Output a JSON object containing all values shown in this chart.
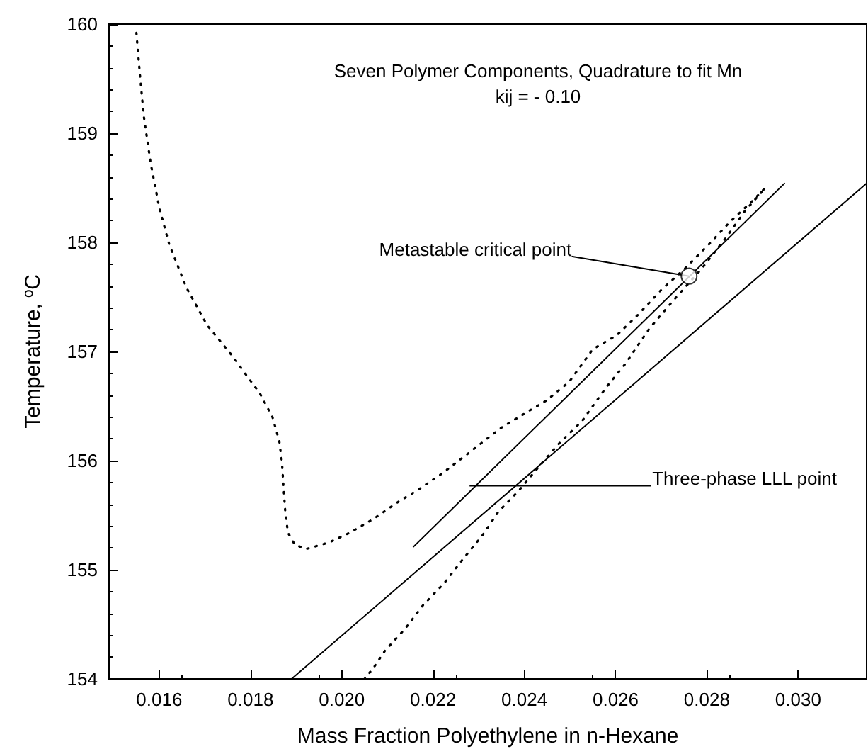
{
  "chart_data": {
    "type": "line",
    "xlabel": "Mass Fraction Polyethylene in n-Hexane",
    "ylabel": "Temperature, ºC",
    "annotations": [
      "Seven Polymer Components, Quadrature to fit Mn",
      "kij = - 0.10",
      {
        "text": "Metastable critical point",
        "x": 0.02761,
        "y": 157.69
      },
      {
        "text": "Three-phase LLL point",
        "x": 0.0228,
        "y": 155.77
      }
    ],
    "xlim": [
      0.0149,
      0.0315
    ],
    "ylim": [
      154,
      160
    ],
    "xticks": [
      0.016,
      0.018,
      {
        "value": 0.02,
        "label": "0.020"
      },
      0.022,
      0.024,
      0.026,
      0.028,
      {
        "value": 0.03,
        "label": "0.030"
      }
    ],
    "yticks": [
      154,
      155,
      156,
      157,
      158,
      159,
      160
    ],
    "grid": false,
    "series": [
      {
        "color": "#000000",
        "line_style": "dotted",
        "x": [
          0.0155,
          0.01557,
          0.01566,
          0.01581,
          0.016,
          0.01622,
          0.01659,
          0.01705,
          0.01764,
          0.01786,
          0.0182,
          0.01848,
          0.01863,
          0.01869,
          0.01872,
          0.01876,
          0.01882,
          0.01897,
          0.01922,
          0.01972,
          0.02018,
          0.02071,
          0.02123,
          0.0217,
          0.02219,
          0.02272,
          0.02349,
          0.02396,
          0.02448,
          0.02498,
          0.0255,
          0.02603,
          0.0265,
          0.02699,
          0.02752,
          0.02804,
          0.02851,
          0.029,
          0.02928,
          0.02882,
          0.02845,
          0.02789,
          0.02727,
          0.02674,
          0.02622,
          0.02581,
          0.02526,
          0.02479,
          0.02433,
          0.02389,
          0.02343,
          0.02309,
          0.02266,
          0.02225,
          0.02179,
          0.02139,
          0.02095,
          0.02071,
          0.0205
        ],
        "values": [
          159.92,
          159.57,
          159.16,
          158.73,
          158.32,
          157.98,
          157.59,
          157.24,
          156.94,
          156.81,
          156.62,
          156.4,
          156.18,
          155.98,
          155.78,
          155.54,
          155.34,
          155.23,
          155.19,
          155.25,
          155.34,
          155.47,
          155.62,
          155.74,
          155.88,
          156.05,
          156.3,
          156.42,
          156.55,
          156.72,
          157.02,
          157.15,
          157.34,
          157.56,
          157.76,
          157.98,
          158.19,
          158.38,
          158.5,
          158.28,
          158.06,
          157.76,
          157.47,
          157.21,
          156.89,
          156.68,
          156.36,
          156.17,
          155.95,
          155.73,
          155.53,
          155.32,
          155.1,
          154.88,
          154.68,
          154.46,
          154.26,
          154.11,
          154
        ]
      },
      {
        "color": "#000000",
        "line_style": "solid",
        "x": [
          0.02157,
          0.0297
        ],
        "values": [
          155.21,
          158.54
        ]
      },
      {
        "color": "#000000",
        "line_style": "solid",
        "x": [
          0.0189,
          0.0315
        ],
        "values": [
          154,
          158.54
        ]
      },
      {
        "type": "scatter",
        "color": "#000000",
        "marker": "circle",
        "x": [
          0.02761
        ],
        "values": [
          157.69
        ]
      }
    ]
  }
}
